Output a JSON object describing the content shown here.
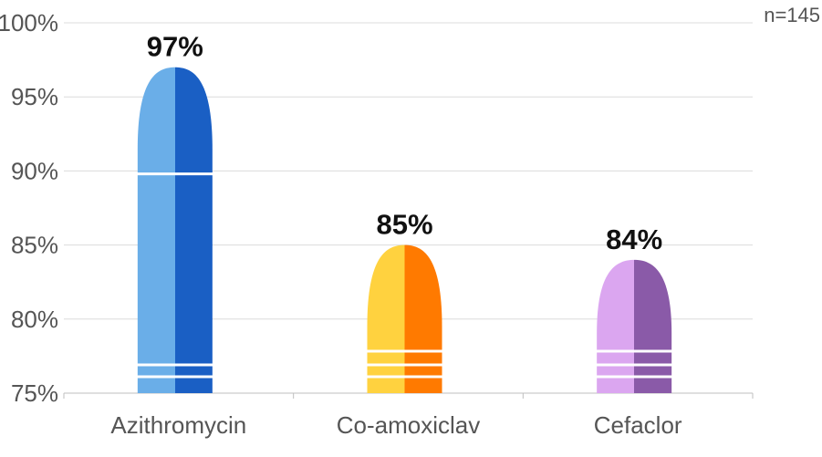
{
  "note": "n=145",
  "chart_data": {
    "type": "bar",
    "title": "",
    "xlabel": "",
    "ylabel": "",
    "categories": [
      "Azithromycin",
      "Co-amoxiclav",
      "Cefaclor"
    ],
    "values": [
      97,
      85,
      84
    ],
    "value_labels": [
      "97%",
      "85%",
      "84%"
    ],
    "ylim": [
      75,
      100
    ],
    "yticks": [
      75,
      80,
      85,
      90,
      95,
      100
    ],
    "ytick_labels": [
      "75%",
      "80%",
      "85%",
      "90%",
      "95%",
      "100%"
    ],
    "grid": true,
    "legend": "none",
    "colors": [
      {
        "light": "#6aaee8",
        "dark": "#1a5fc4"
      },
      {
        "light": "#ffd23f",
        "dark": "#ff7a00"
      },
      {
        "light": "#dba6f0",
        "dark": "#8a5aa8"
      }
    ]
  }
}
